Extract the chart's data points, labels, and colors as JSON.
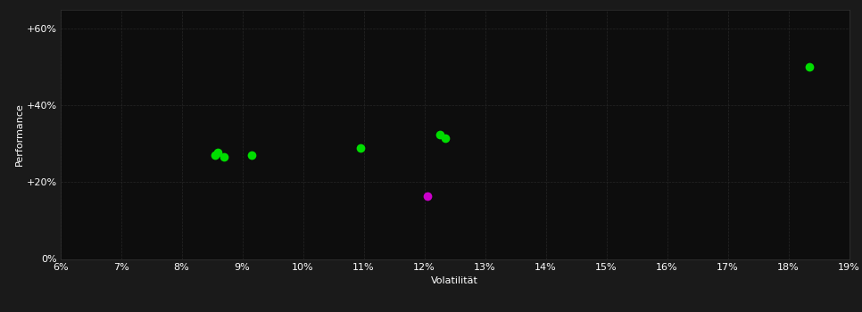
{
  "background_color": "#1a1a1a",
  "plot_bg_color": "#0d0d0d",
  "grid_color": "#2d2d2d",
  "text_color": "#ffffff",
  "xlabel": "Volatilität",
  "ylabel": "Performance",
  "xlim": [
    0.06,
    0.19
  ],
  "ylim": [
    0.0,
    0.65
  ],
  "xticks": [
    0.06,
    0.07,
    0.08,
    0.09,
    0.1,
    0.11,
    0.12,
    0.13,
    0.14,
    0.15,
    0.16,
    0.17,
    0.18,
    0.19
  ],
  "yticks": [
    0.0,
    0.2,
    0.4,
    0.6
  ],
  "ytick_labels": [
    "0%",
    "+20%",
    "+40%",
    "+60%"
  ],
  "green_points": [
    [
      0.0855,
      0.27
    ],
    [
      0.086,
      0.278
    ],
    [
      0.087,
      0.265
    ],
    [
      0.0915,
      0.27
    ],
    [
      0.1095,
      0.29
    ],
    [
      0.1225,
      0.323
    ],
    [
      0.1235,
      0.315
    ],
    [
      0.1835,
      0.5
    ]
  ],
  "magenta_points": [
    [
      0.1205,
      0.163
    ]
  ],
  "green_color": "#00dd00",
  "magenta_color": "#cc00cc",
  "marker_size": 7,
  "figsize": [
    9.66,
    3.5
  ],
  "dpi": 100
}
